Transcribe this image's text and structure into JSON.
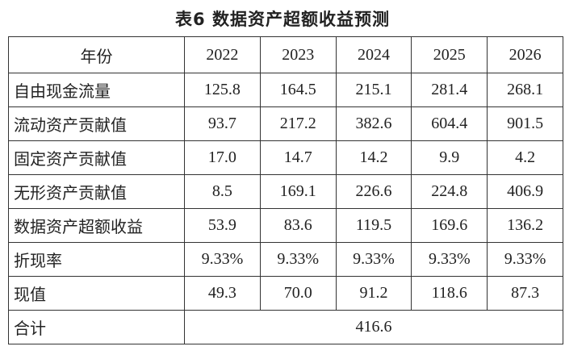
{
  "title": "表6 数据资产超额收益预测",
  "table": {
    "header": [
      "年份",
      "2022",
      "2023",
      "2024",
      "2025",
      "2026"
    ],
    "rows": [
      [
        "自由现金流量",
        "125.8",
        "164.5",
        "215.1",
        "281.4",
        "268.1"
      ],
      [
        "流动资产贡献值",
        "93.7",
        "217.2",
        "382.6",
        "604.4",
        "901.5"
      ],
      [
        "固定资产贡献值",
        "17.0",
        "14.7",
        "14.2",
        "9.9",
        "4.2"
      ],
      [
        "无形资产贡献值",
        "8.5",
        "169.1",
        "226.6",
        "224.8",
        "406.9"
      ],
      [
        "数据资产超额收益",
        "53.9",
        "83.6",
        "119.5",
        "169.6",
        "136.2"
      ],
      [
        "折现率",
        "9.33%",
        "9.33%",
        "9.33%",
        "9.33%",
        "9.33%"
      ],
      [
        "现值",
        "49.3",
        "70.0",
        "91.2",
        "118.6",
        "87.3"
      ],
      [
        "合计",
        "416.6"
      ]
    ]
  }
}
